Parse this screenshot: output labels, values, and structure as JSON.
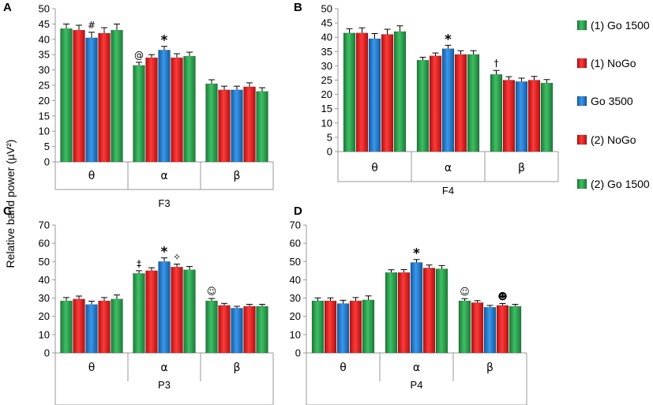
{
  "y_axis_label": "Relative band power (µV²)",
  "colors": {
    "green": "#2e9e4e",
    "red": "#e02020",
    "blue": "#1f7bd1"
  },
  "legend": [
    {
      "label": "(1) Go 1500",
      "color": "#2e9e4e"
    },
    {
      "label": "(1) NoGo",
      "color": "#e02020"
    },
    {
      "label": "Go 3500",
      "color": "#1f7bd1"
    },
    {
      "label": "(2) NoGo",
      "color": "#e02020"
    },
    {
      "label": "(2) Go 1500",
      "color": "#2e9e4e"
    }
  ],
  "chart_data": [
    {
      "type": "bar",
      "panel": "A",
      "title": "F3",
      "categories": [
        "θ",
        "α",
        "β"
      ],
      "ylim": [
        0,
        50
      ],
      "yticks": [
        0,
        5,
        10,
        15,
        20,
        25,
        30,
        35,
        40,
        45,
        50
      ],
      "series": [
        {
          "name": "(1) Go 1500",
          "values": [
            43.5,
            31.5,
            25.5
          ],
          "errors": [
            1.5,
            1,
            1.3
          ]
        },
        {
          "name": "(1) NoGo",
          "values": [
            43,
            34,
            23.5
          ],
          "errors": [
            1.6,
            1,
            1.2
          ]
        },
        {
          "name": "Go 3500",
          "values": [
            40.5,
            36.5,
            23.5
          ],
          "errors": [
            1.8,
            1.2,
            1.2
          ]
        },
        {
          "name": "(2) NoGo",
          "values": [
            42,
            34,
            24.5
          ],
          "errors": [
            1.8,
            1.3,
            1.3
          ]
        },
        {
          "name": "(2) Go 1500",
          "values": [
            43,
            34.5,
            23
          ],
          "errors": [
            2,
            1.3,
            1.2
          ]
        }
      ],
      "annotations": [
        {
          "category": 0,
          "series": 2,
          "text": "#"
        },
        {
          "category": 1,
          "series": 0,
          "text": "@"
        },
        {
          "category": 1,
          "series": 2,
          "text": "*"
        }
      ]
    },
    {
      "type": "bar",
      "panel": "B",
      "title": "F4",
      "categories": [
        "θ",
        "α",
        "β"
      ],
      "ylim": [
        0,
        50
      ],
      "yticks": [
        0,
        5,
        10,
        15,
        20,
        25,
        30,
        35,
        40,
        45,
        50
      ],
      "series": [
        {
          "name": "(1) Go 1500",
          "values": [
            41.5,
            32,
            27
          ],
          "errors": [
            1.5,
            1,
            1.4
          ]
        },
        {
          "name": "(1) NoGo",
          "values": [
            41.5,
            33.5,
            25
          ],
          "errors": [
            1.8,
            1,
            1.2
          ]
        },
        {
          "name": "Go 3500",
          "values": [
            39.5,
            36,
            24.5
          ],
          "errors": [
            1.8,
            1.2,
            1.2
          ]
        },
        {
          "name": "(2) NoGo",
          "values": [
            41,
            34,
            25
          ],
          "errors": [
            1.8,
            1.3,
            1.3
          ]
        },
        {
          "name": "(2) Go 1500",
          "values": [
            42,
            34,
            24
          ],
          "errors": [
            2,
            1.3,
            1.2
          ]
        }
      ],
      "annotations": [
        {
          "category": 1,
          "series": 2,
          "text": "*"
        },
        {
          "category": 2,
          "series": 0,
          "text": "†"
        }
      ]
    },
    {
      "type": "bar",
      "panel": "C",
      "title": "P3",
      "categories": [
        "θ",
        "α",
        "β"
      ],
      "ylim": [
        0,
        70
      ],
      "yticks": [
        0,
        10,
        20,
        30,
        40,
        50,
        60,
        70
      ],
      "series": [
        {
          "name": "(1) Go 1500",
          "values": [
            28.5,
            43.5,
            28.5
          ],
          "errors": [
            1.8,
            1.5,
            1.3
          ]
        },
        {
          "name": "(1) NoGo",
          "values": [
            29.5,
            45,
            26
          ],
          "errors": [
            1.6,
            1.6,
            1.1
          ]
        },
        {
          "name": "Go 3500",
          "values": [
            26.5,
            50,
            24.5
          ],
          "errors": [
            1.8,
            2,
            1
          ]
        },
        {
          "name": "(2) NoGo",
          "values": [
            28.5,
            47,
            25.5
          ],
          "errors": [
            1.8,
            1.6,
            1.1
          ]
        },
        {
          "name": "(2) Go 1500",
          "values": [
            29.5,
            45.5,
            25.5
          ],
          "errors": [
            2.2,
            1.8,
            1.1
          ]
        }
      ],
      "annotations": [
        {
          "category": 1,
          "series": 0,
          "text": "‡"
        },
        {
          "category": 1,
          "series": 2,
          "text": "*"
        },
        {
          "category": 1,
          "series": 3,
          "text": "✧"
        },
        {
          "category": 2,
          "series": 0,
          "text": "☺"
        }
      ]
    },
    {
      "type": "bar",
      "panel": "D",
      "title": "P4",
      "categories": [
        "θ",
        "α",
        "β"
      ],
      "ylim": [
        0,
        70
      ],
      "yticks": [
        0,
        10,
        20,
        30,
        40,
        50,
        60,
        70
      ],
      "series": [
        {
          "name": "(1) Go 1500",
          "values": [
            28.5,
            44,
            28.5
          ],
          "errors": [
            1.6,
            1.5,
            1.2
          ]
        },
        {
          "name": "(1) NoGo",
          "values": [
            28.5,
            44,
            27.5
          ],
          "errors": [
            1.6,
            1.6,
            1.1
          ]
        },
        {
          "name": "Go 3500",
          "values": [
            27,
            49.5,
            25
          ],
          "errors": [
            1.8,
            1.6,
            1
          ]
        },
        {
          "name": "(2) NoGo",
          "values": [
            28.5,
            46.5,
            26
          ],
          "errors": [
            1.8,
            1.6,
            1
          ]
        },
        {
          "name": "(2) Go 1500",
          "values": [
            29,
            46,
            25.5
          ],
          "errors": [
            2.2,
            1.8,
            1.1
          ]
        }
      ],
      "annotations": [
        {
          "category": 1,
          "series": 2,
          "text": "*"
        },
        {
          "category": 2,
          "series": 0,
          "text": "☺"
        },
        {
          "category": 2,
          "series": 3,
          "text": "☻"
        }
      ]
    }
  ]
}
